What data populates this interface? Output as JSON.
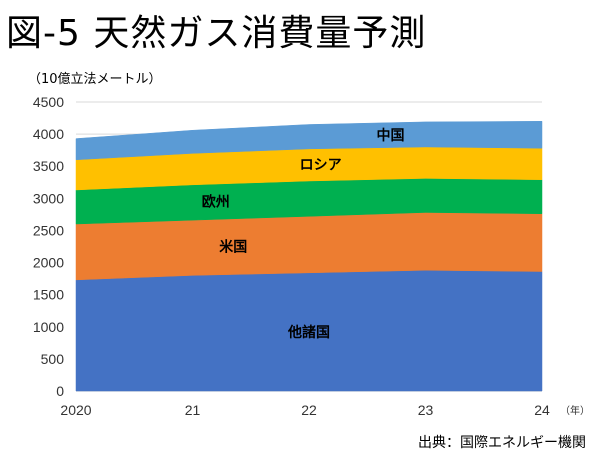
{
  "header": {
    "title": "図-5 天然ガス消費量予測",
    "unit": "（10億立法メートル）"
  },
  "footer": {
    "source": "出典：国際エネルギー機関"
  },
  "chart_data": {
    "type": "area",
    "stacked": true,
    "categories": [
      "2020",
      "21",
      "22",
      "23",
      "24"
    ],
    "x_suffix": "（年）",
    "ylim": [
      0,
      4500
    ],
    "yticks": [
      0,
      500,
      1000,
      1500,
      2000,
      2500,
      3000,
      3500,
      4000,
      4500
    ],
    "grid": true,
    "series": [
      {
        "name": "他諸国",
        "color": "#4472C4",
        "values": [
          1730,
          1800,
          1840,
          1880,
          1860
        ]
      },
      {
        "name": "米国",
        "color": "#ED7D31",
        "values": [
          870,
          860,
          880,
          900,
          900
        ]
      },
      {
        "name": "欧州",
        "color": "#00B050",
        "values": [
          530,
          550,
          550,
          530,
          530
        ]
      },
      {
        "name": "ロシア",
        "color": "#FFC000",
        "values": [
          470,
          490,
          500,
          490,
          490
        ]
      },
      {
        "name": "中国",
        "color": "#5B9BD5",
        "values": [
          330,
          360,
          380,
          390,
          420
        ]
      }
    ]
  }
}
